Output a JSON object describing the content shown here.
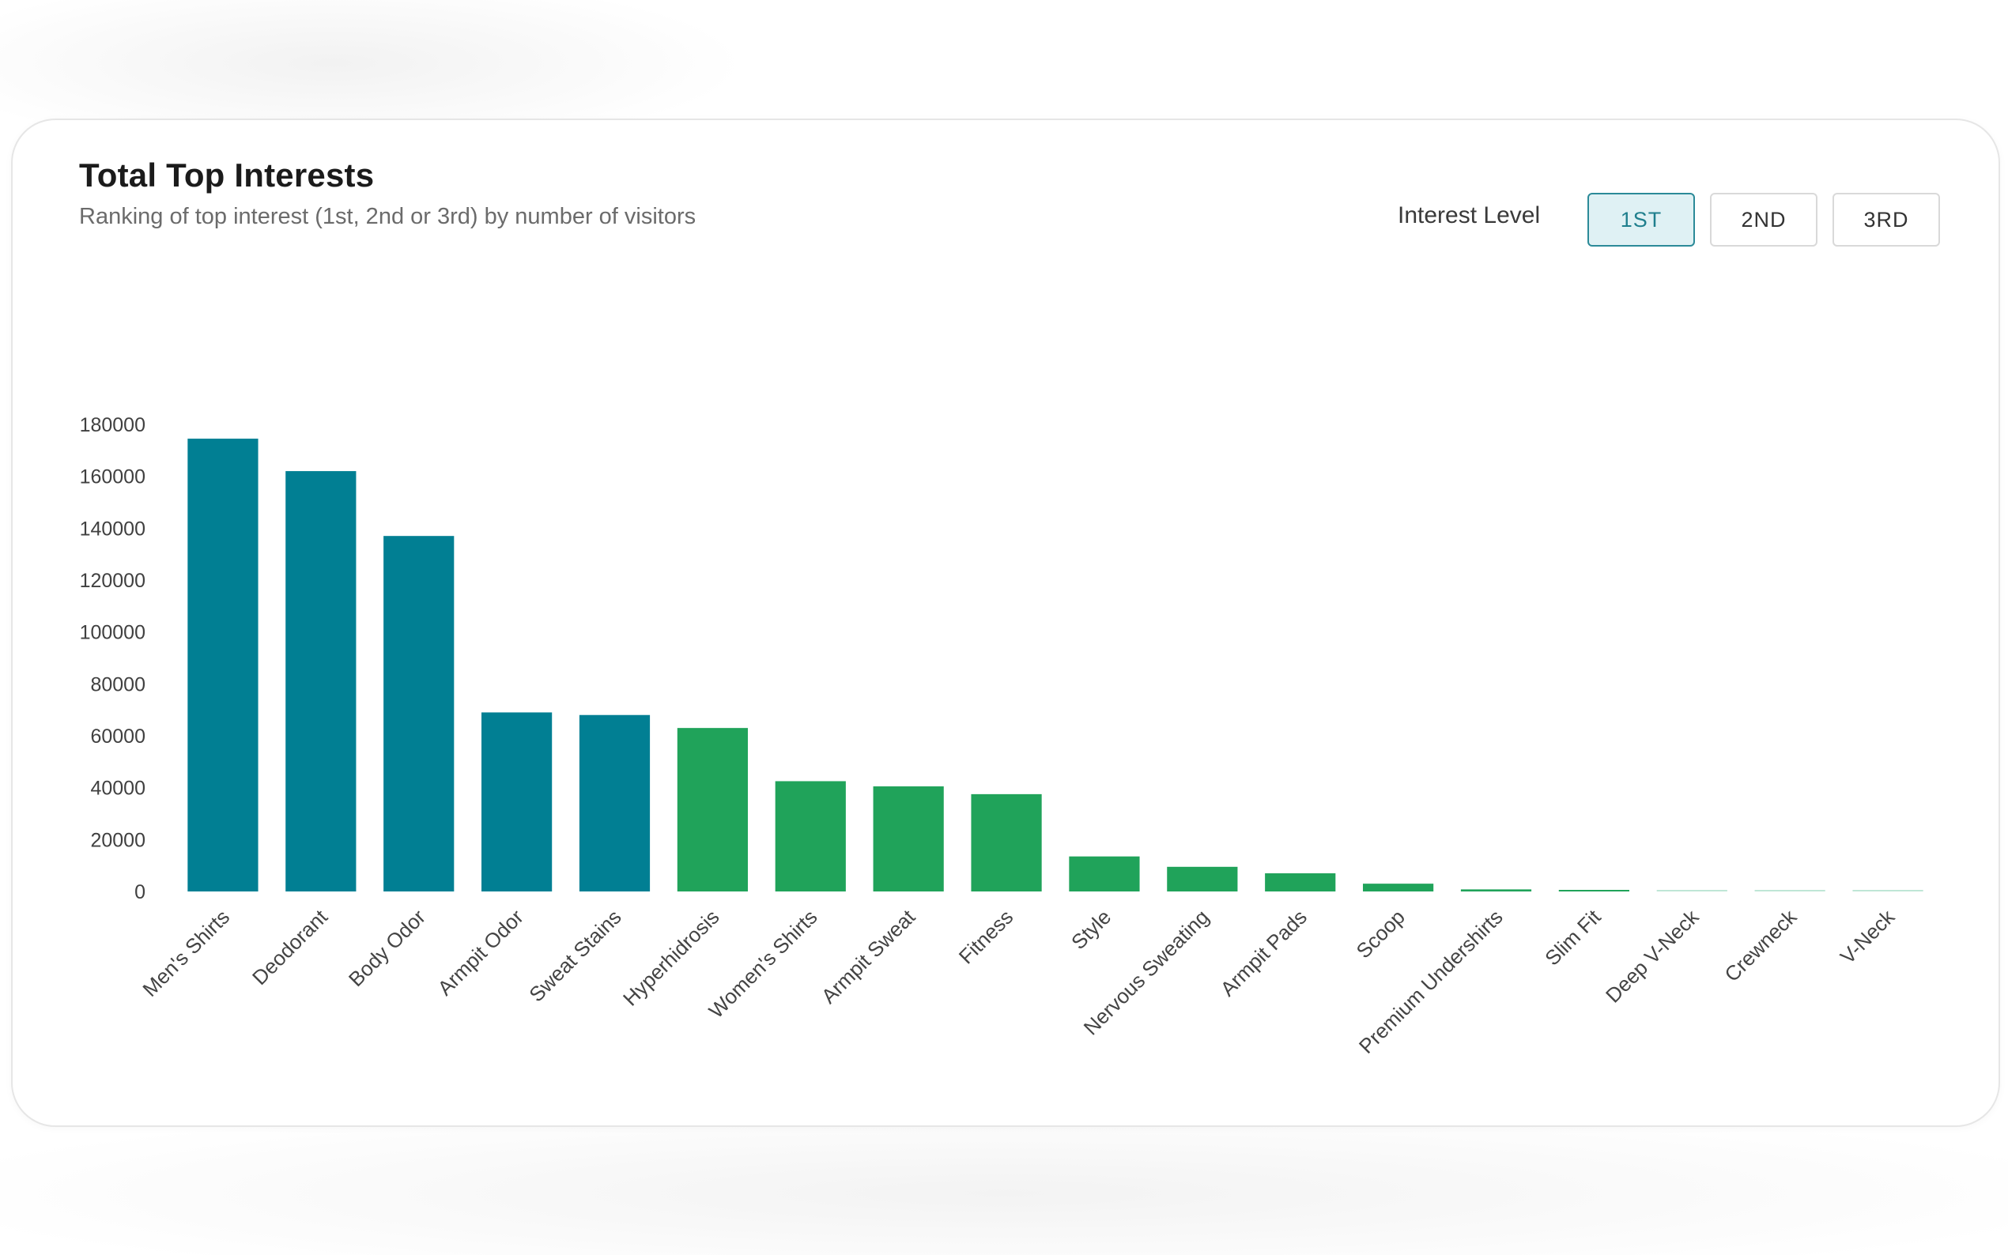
{
  "card": {
    "title": "Total Top Interests",
    "subtitle": "Ranking of top interest (1st, 2nd or 3rd) by number of visitors"
  },
  "interest_level": {
    "label": "Interest Level",
    "options": [
      "1ST",
      "2ND",
      "3RD"
    ],
    "selected": "1ST"
  },
  "colors": {
    "teal": "#017F93",
    "green": "#20A35A",
    "light": "#BFE6D6",
    "active_bg": "#DFF1F4",
    "active_border": "#2B8A98"
  },
  "chart_data": {
    "type": "bar",
    "title": "",
    "xlabel": "",
    "ylabel": "",
    "ylim": [
      0,
      180000
    ],
    "yticks": [
      0,
      20000,
      40000,
      60000,
      80000,
      100000,
      120000,
      140000,
      160000,
      180000
    ],
    "grid": false,
    "categories": [
      "Men's Shirts",
      "Deodorant",
      "Body Odor",
      "Armpit Odor",
      "Sweat Stains",
      "Hyperhidrosis",
      "Women's Shirts",
      "Armpit Sweat",
      "Fitness",
      "Style",
      "Nervous Sweating",
      "Armpit Pads",
      "Scoop",
      "Premium Undershirts",
      "Slim Fit",
      "Deep V-Neck",
      "Crewneck",
      "V-Neck"
    ],
    "values": [
      174500,
      162000,
      137000,
      69000,
      68000,
      63000,
      42500,
      40500,
      37500,
      13500,
      9500,
      7000,
      3000,
      800,
      500,
      200,
      100,
      100
    ],
    "bar_colors": [
      "#017F93",
      "#017F93",
      "#017F93",
      "#017F93",
      "#017F93",
      "#20A35A",
      "#20A35A",
      "#20A35A",
      "#20A35A",
      "#20A35A",
      "#20A35A",
      "#20A35A",
      "#20A35A",
      "#20A35A",
      "#20A35A",
      "#BFE6D6",
      "#BFE6D6",
      "#BFE6D6"
    ]
  }
}
